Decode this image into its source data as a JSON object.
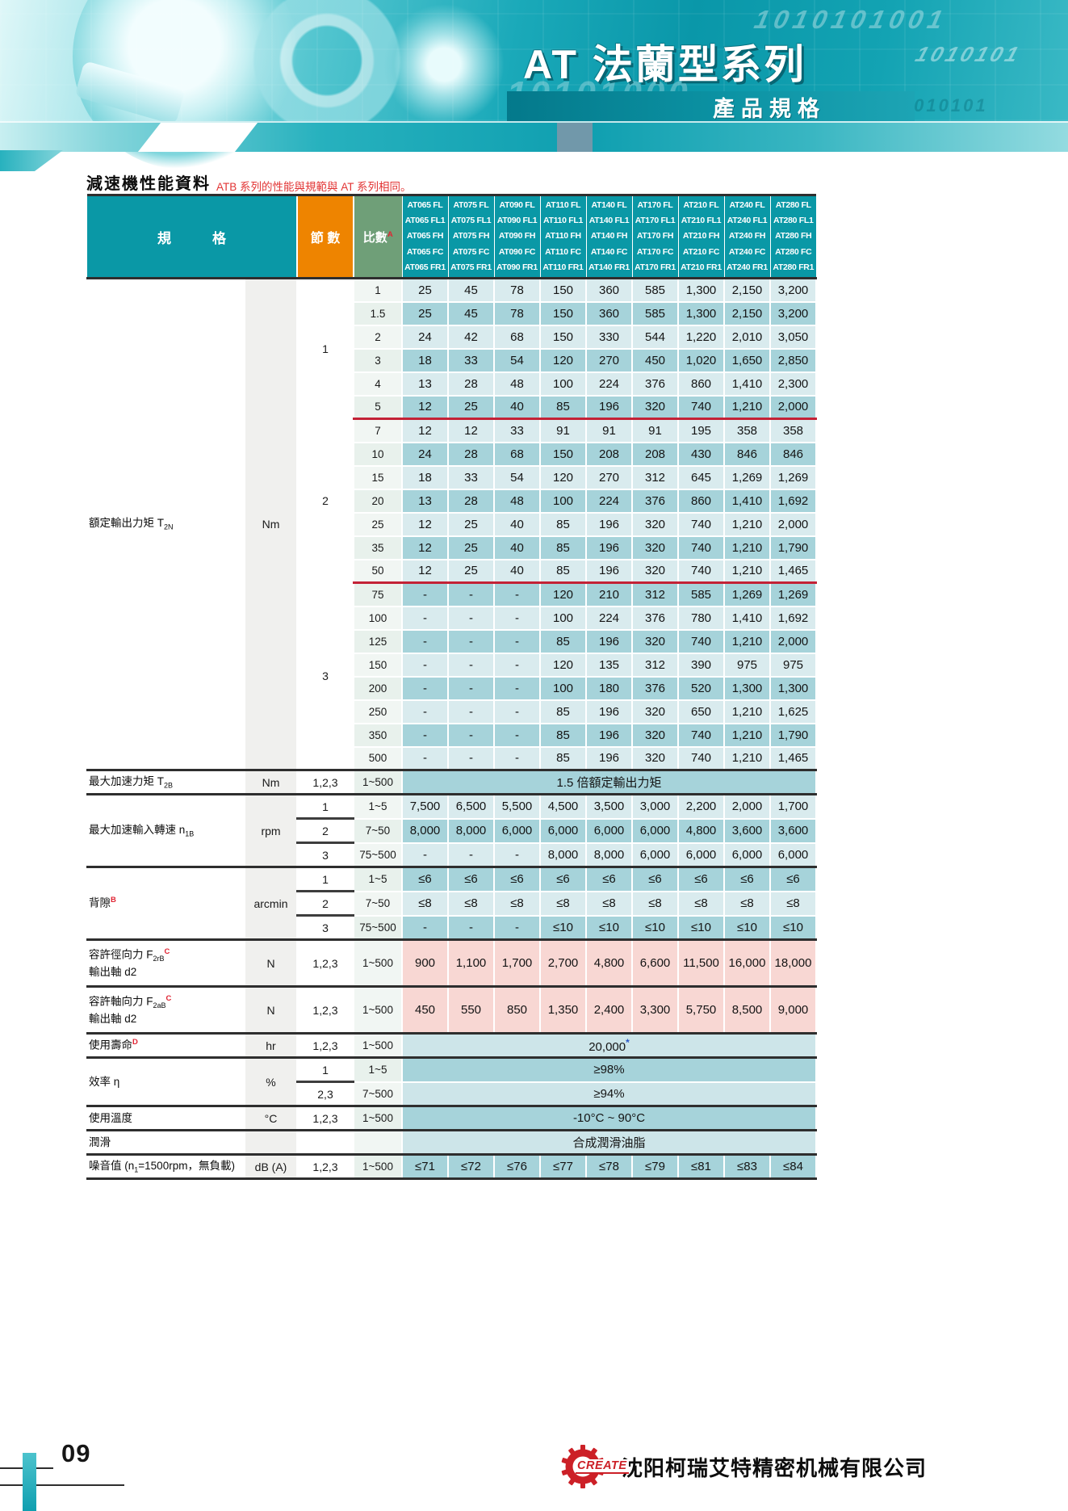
{
  "banner": {
    "title": "AT 法蘭型系列",
    "subtitle": "產品規格",
    "binary_1": "1010101001",
    "binary_2": "10101000",
    "binary_3": "10101010101",
    "binary_4": "1010101"
  },
  "intro": {
    "heading": "減速機性能資料",
    "note": "ATB 系列的性能與規範與 AT 系列相同。"
  },
  "table": {
    "header": {
      "spec": "規　　　格",
      "stages": "節 數",
      "ratio": "比數",
      "ratio_sup": "A",
      "model_bases": [
        "AT065",
        "AT075",
        "AT090",
        "AT110",
        "AT140",
        "AT170",
        "AT210",
        "AT240",
        "AT280"
      ],
      "model_suffixes": [
        "FL",
        "FL1",
        "FH",
        "FC",
        "FR1"
      ]
    },
    "torque": {
      "label_lines": [
        [
          {
            "t": "額定輸出力矩 T"
          },
          {
            "sub": "2N"
          }
        ]
      ],
      "unit": "Nm",
      "sections": [
        {
          "stages": "1",
          "rows": [
            {
              "ratio": "1",
              "values": [
                "25",
                "45",
                "78",
                "150",
                "360",
                "585",
                "1,300",
                "2,150",
                "3,200"
              ]
            },
            {
              "ratio": "1.5",
              "values": [
                "25",
                "45",
                "78",
                "150",
                "360",
                "585",
                "1,300",
                "2,150",
                "3,200"
              ]
            },
            {
              "ratio": "2",
              "values": [
                "24",
                "42",
                "68",
                "150",
                "330",
                "544",
                "1,220",
                "2,010",
                "3,050"
              ]
            },
            {
              "ratio": "3",
              "values": [
                "18",
                "33",
                "54",
                "120",
                "270",
                "450",
                "1,020",
                "1,650",
                "2,850"
              ]
            },
            {
              "ratio": "4",
              "values": [
                "13",
                "28",
                "48",
                "100",
                "224",
                "376",
                "860",
                "1,410",
                "2,300"
              ]
            },
            {
              "ratio": "5",
              "values": [
                "12",
                "25",
                "40",
                "85",
                "196",
                "320",
                "740",
                "1,210",
                "2,000"
              ]
            }
          ]
        },
        {
          "stages": "2",
          "rows": [
            {
              "ratio": "7",
              "values": [
                "12",
                "12",
                "33",
                "91",
                "91",
                "91",
                "195",
                "358",
                "358"
              ]
            },
            {
              "ratio": "10",
              "values": [
                "24",
                "28",
                "68",
                "150",
                "208",
                "208",
                "430",
                "846",
                "846"
              ]
            },
            {
              "ratio": "15",
              "values": [
                "18",
                "33",
                "54",
                "120",
                "270",
                "312",
                "645",
                "1,269",
                "1,269"
              ]
            },
            {
              "ratio": "20",
              "values": [
                "13",
                "28",
                "48",
                "100",
                "224",
                "376",
                "860",
                "1,410",
                "1,692"
              ]
            },
            {
              "ratio": "25",
              "values": [
                "12",
                "25",
                "40",
                "85",
                "196",
                "320",
                "740",
                "1,210",
                "2,000"
              ]
            },
            {
              "ratio": "35",
              "values": [
                "12",
                "25",
                "40",
                "85",
                "196",
                "320",
                "740",
                "1,210",
                "1,790"
              ]
            },
            {
              "ratio": "50",
              "values": [
                "12",
                "25",
                "40",
                "85",
                "196",
                "320",
                "740",
                "1,210",
                "1,465"
              ]
            }
          ]
        },
        {
          "stages": "3",
          "rows": [
            {
              "ratio": "75",
              "values": [
                "-",
                "-",
                "-",
                "120",
                "210",
                "312",
                "585",
                "1,269",
                "1,269"
              ]
            },
            {
              "ratio": "100",
              "values": [
                "-",
                "-",
                "-",
                "100",
                "224",
                "376",
                "780",
                "1,410",
                "1,692"
              ]
            },
            {
              "ratio": "125",
              "values": [
                "-",
                "-",
                "-",
                "85",
                "196",
                "320",
                "740",
                "1,210",
                "2,000"
              ]
            },
            {
              "ratio": "150",
              "values": [
                "-",
                "-",
                "-",
                "120",
                "135",
                "312",
                "390",
                "975",
                "975"
              ]
            },
            {
              "ratio": "200",
              "values": [
                "-",
                "-",
                "-",
                "100",
                "180",
                "376",
                "520",
                "1,300",
                "1,300"
              ]
            },
            {
              "ratio": "250",
              "values": [
                "-",
                "-",
                "-",
                "85",
                "196",
                "320",
                "650",
                "1,210",
                "1,625"
              ]
            },
            {
              "ratio": "350",
              "values": [
                "-",
                "-",
                "-",
                "85",
                "196",
                "320",
                "740",
                "1,210",
                "1,790"
              ]
            },
            {
              "ratio": "500",
              "values": [
                "-",
                "-",
                "-",
                "85",
                "196",
                "320",
                "740",
                "1,210",
                "1,465"
              ]
            }
          ]
        }
      ]
    },
    "groups": [
      {
        "label_lines": [
          [
            {
              "t": "最大加速力矩 T"
            },
            {
              "sub": "2B"
            }
          ]
        ],
        "unit": "Nm",
        "rows": [
          {
            "stages": "1,2,3",
            "ratio": "1~500",
            "span": "1.5 倍額定輸出力矩",
            "shade": "dark"
          }
        ]
      },
      {
        "label_lines": [
          [
            {
              "t": "最大加速輸入轉速 n"
            },
            {
              "sub": "1B"
            }
          ]
        ],
        "unit": "rpm",
        "rows": [
          {
            "stages": "1",
            "ratio": "1~5",
            "shade": "light",
            "values": [
              "7,500",
              "6,500",
              "5,500",
              "4,500",
              "3,500",
              "3,000",
              "2,200",
              "2,000",
              "1,700"
            ]
          },
          {
            "stages": "2",
            "ratio": "7~50",
            "shade": "dark",
            "subline": true,
            "values": [
              "8,000",
              "8,000",
              "6,000",
              "6,000",
              "6,000",
              "6,000",
              "4,800",
              "3,600",
              "3,600"
            ]
          },
          {
            "stages": "3",
            "ratio": "75~500",
            "shade": "light",
            "subline": true,
            "values": [
              "-",
              "-",
              "-",
              "8,000",
              "8,000",
              "6,000",
              "6,000",
              "6,000",
              "6,000"
            ]
          }
        ]
      },
      {
        "label_lines": [
          [
            {
              "t": "背隙"
            },
            {
              "supr": "B"
            }
          ]
        ],
        "unit": "arcmin",
        "rows": [
          {
            "stages": "1",
            "ratio": "1~5",
            "shade": "dark",
            "values": [
              "≤6",
              "≤6",
              "≤6",
              "≤6",
              "≤6",
              "≤6",
              "≤6",
              "≤6",
              "≤6"
            ]
          },
          {
            "stages": "2",
            "ratio": "7~50",
            "shade": "light",
            "subline": true,
            "values": [
              "≤8",
              "≤8",
              "≤8",
              "≤8",
              "≤8",
              "≤8",
              "≤8",
              "≤8",
              "≤8"
            ]
          },
          {
            "stages": "3",
            "ratio": "75~500",
            "shade": "dark",
            "subline": true,
            "values": [
              "-",
              "-",
              "-",
              "≤10",
              "≤10",
              "≤10",
              "≤10",
              "≤10",
              "≤10"
            ]
          }
        ]
      },
      {
        "label_lines": [
          [
            {
              "t": "容許徑向力  F"
            },
            {
              "sub": "2rB"
            },
            {
              "supr": "C"
            }
          ],
          [
            {
              "t": "輸出軸 d2"
            }
          ]
        ],
        "unit": "N",
        "rows": [
          {
            "stages": "1,2,3",
            "ratio": "1~500",
            "pink": true,
            "tall": true,
            "shade": "light",
            "values": [
              "900",
              "1,100",
              "1,700",
              "2,700",
              "4,800",
              "6,600",
              "11,500",
              "16,000",
              "18,000"
            ]
          }
        ]
      },
      {
        "label_lines": [
          [
            {
              "t": "容許軸向力  F"
            },
            {
              "sub": "2aB"
            },
            {
              "supr": "C"
            }
          ],
          [
            {
              "t": "輸出軸 d2"
            }
          ]
        ],
        "unit": "N",
        "rows": [
          {
            "stages": "1,2,3",
            "ratio": "1~500",
            "pink": true,
            "tall": true,
            "shade": "light",
            "values": [
              "450",
              "550",
              "850",
              "1,350",
              "2,400",
              "3,300",
              "5,750",
              "8,500",
              "9,000"
            ]
          }
        ]
      },
      {
        "label_lines": [
          [
            {
              "t": "使用壽命"
            },
            {
              "supr": "D"
            }
          ]
        ],
        "unit": "hr",
        "rows": [
          {
            "stages": "1,2,3",
            "ratio": "1~500",
            "span": "20,000",
            "span_mark": "*",
            "shade": "light"
          }
        ]
      },
      {
        "label_lines": [
          [
            {
              "t": "效率 η"
            }
          ]
        ],
        "unit": "%",
        "rows": [
          {
            "stages": "1",
            "ratio": "1~5",
            "span": "≥98%",
            "shade": "dark"
          },
          {
            "stages": "2,3",
            "ratio": "7~500",
            "span": "≥94%",
            "shade": "light",
            "subline": true
          }
        ]
      },
      {
        "label_lines": [
          [
            {
              "t": "使用溫度"
            }
          ]
        ],
        "unit": "°C",
        "rows": [
          {
            "stages": "1,2,3",
            "ratio": "1~500",
            "span": "-10°C ~ 90°C",
            "shade": "dark"
          }
        ]
      },
      {
        "label_lines": [
          [
            {
              "t": "潤滑"
            }
          ]
        ],
        "unit": "",
        "rows": [
          {
            "stages": "",
            "ratio": "",
            "span": "合成潤滑油脂",
            "shade": "light"
          }
        ]
      },
      {
        "label_lines": [
          [
            {
              "t": "噪音值 (n"
            },
            {
              "sub": "1"
            },
            {
              "t": "=1500rpm，無負載)"
            }
          ]
        ],
        "unit": "dB (A)",
        "rows": [
          {
            "stages": "1,2,3",
            "ratio": "1~500",
            "shade": "dark",
            "values": [
              "≤71",
              "≤72",
              "≤76",
              "≤77",
              "≤78",
              "≤79",
              "≤81",
              "≤83",
              "≤84"
            ]
          }
        ]
      }
    ]
  },
  "footer": {
    "page": "09",
    "logo_text": "CREATE",
    "company": "沈阳柯瑞艾特精密机械有限公司"
  }
}
